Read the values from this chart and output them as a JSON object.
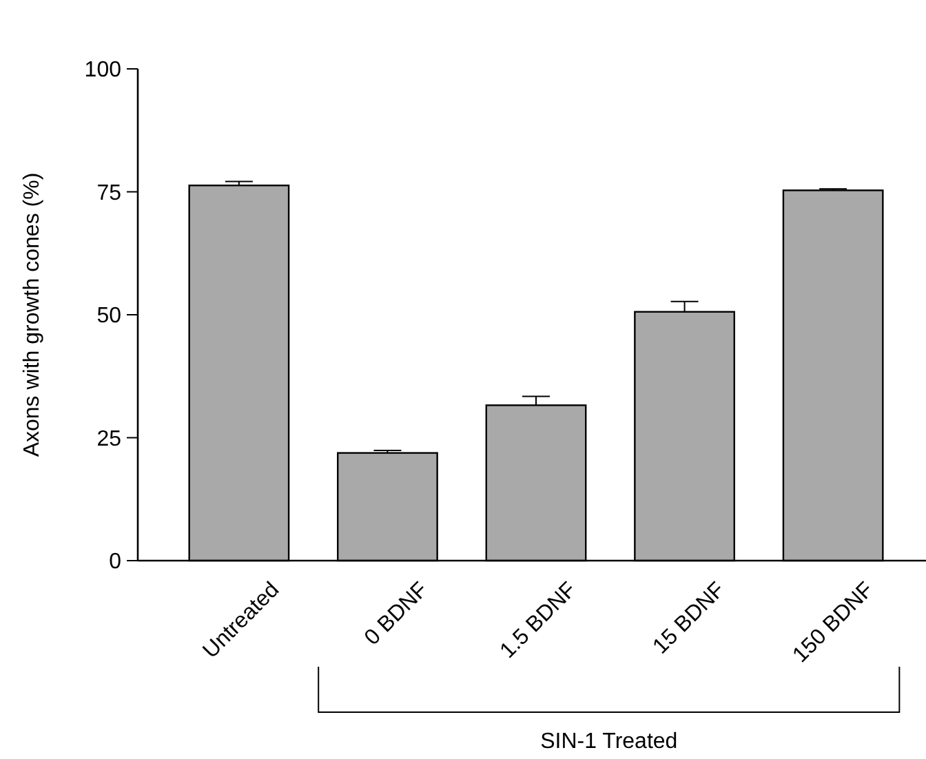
{
  "chart_data": {
    "type": "bar",
    "ylabel": "Axons with growth cones (%)",
    "categories": [
      "Untreated",
      "0 BDNF",
      "1.5 BDNF",
      "15 BDNF",
      "150 BDNF"
    ],
    "values": [
      76.3,
      21.9,
      31.6,
      50.6,
      75.3
    ],
    "errors": [
      0.8,
      0.5,
      1.8,
      2.1,
      0.3
    ],
    "color": "#a9a9a9",
    "ylim": [
      0,
      100
    ],
    "yticks": [
      0,
      25,
      50,
      75,
      100
    ],
    "annotations": [
      "SIN-1 Treated"
    ]
  }
}
